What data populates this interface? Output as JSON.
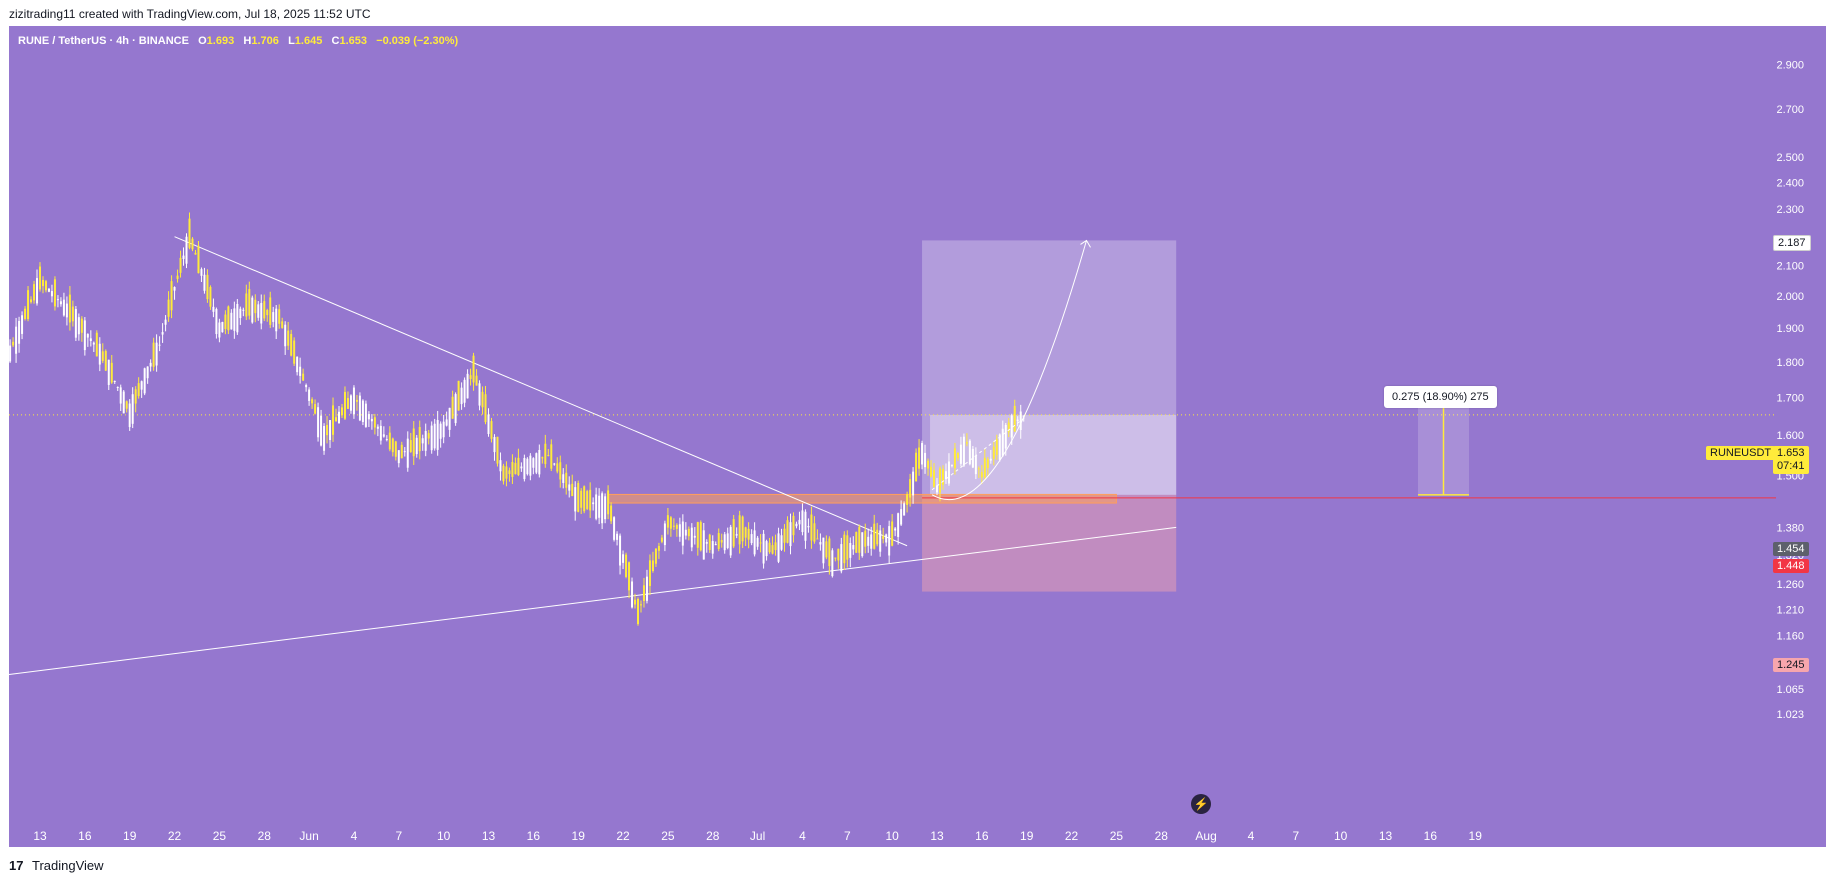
{
  "header": {
    "credit": "zizitrading11 created with TradingView.com, Jul 18, 2025 11:52 UTC"
  },
  "legend": {
    "symbol": "RUNE / TetherUS · 4h · BINANCE",
    "o_label": "O",
    "o": "1.693",
    "h_label": "H",
    "h": "1.706",
    "l_label": "L",
    "l": "1.645",
    "c_label": "C",
    "c": "1.653",
    "change": "−0.039 (−2.30%)"
  },
  "tags": {
    "target": "2.187",
    "entry": "1.454",
    "level": "1.448",
    "stop": "1.245",
    "symbol": "RUNEUSDT",
    "last_price": "1.653",
    "countdown": "07:41"
  },
  "measure": {
    "label": "0.275 (18.90%) 275"
  },
  "footer": {
    "logo": "17",
    "brand": "TradingView"
  },
  "icons": {
    "flash": "lightning-icon",
    "logo": "tradingview-logo-icon"
  },
  "colors": {
    "background": "#9577cf",
    "candle_up": "#ffffff",
    "candle_down": "#ffeb3b",
    "stop_zone": "rgba(247,166,173,0.45)",
    "target_zone": "rgba(255,255,255,0.35)",
    "accent_line": "#f23645"
  },
  "chart_data": {
    "type": "candlestick",
    "symbol": "RUNE / TetherUS",
    "timeframe": "4h",
    "exchange": "BINANCE",
    "price_axis": {
      "scale": "log",
      "ticks": [
        "2.900",
        "2.700",
        "2.500",
        "2.400",
        "2.300",
        "2.100",
        "2.000",
        "1.900",
        "1.800",
        "1.700",
        "1.600",
        "1.500",
        "1.380",
        "1.320",
        "1.260",
        "1.210",
        "1.160",
        "1.110",
        "1.065",
        "1.023"
      ],
      "range": [
        1.0,
        2.95
      ]
    },
    "time_axis": {
      "ticks": [
        "13",
        "16",
        "19",
        "22",
        "25",
        "28",
        "Jun",
        "4",
        "7",
        "10",
        "13",
        "16",
        "19",
        "22",
        "25",
        "28",
        "Jul",
        "4",
        "7",
        "10",
        "13",
        "16",
        "19",
        "22",
        "25",
        "28",
        "Aug",
        "4",
        "7",
        "10",
        "13",
        "16",
        "19"
      ]
    },
    "price_path": [
      {
        "t": "May 10",
        "p": 1.72
      },
      {
        "t": "May 13",
        "p": 2.05
      },
      {
        "t": "May 15",
        "p": 1.95
      },
      {
        "t": "May 17",
        "p": 1.83
      },
      {
        "t": "May 19",
        "p": 1.66
      },
      {
        "t": "May 21",
        "p": 1.85
      },
      {
        "t": "May 23",
        "p": 2.2
      },
      {
        "t": "May 25",
        "p": 1.9
      },
      {
        "t": "May 27",
        "p": 1.97
      },
      {
        "t": "May 29",
        "p": 1.93
      },
      {
        "t": "Jun 1",
        "p": 1.6
      },
      {
        "t": "Jun 3",
        "p": 1.7
      },
      {
        "t": "Jun 6",
        "p": 1.55
      },
      {
        "t": "Jun 9",
        "p": 1.62
      },
      {
        "t": "Jun 11",
        "p": 1.77
      },
      {
        "t": "Jun 13",
        "p": 1.5
      },
      {
        "t": "Jun 16",
        "p": 1.55
      },
      {
        "t": "Jun 18",
        "p": 1.44
      },
      {
        "t": "Jun 20",
        "p": 1.43
      },
      {
        "t": "Jun 22",
        "p": 1.2
      },
      {
        "t": "Jun 24",
        "p": 1.39
      },
      {
        "t": "Jun 27",
        "p": 1.34
      },
      {
        "t": "Jun 29",
        "p": 1.37
      },
      {
        "t": "Jul 1",
        "p": 1.33
      },
      {
        "t": "Jul 3",
        "p": 1.4
      },
      {
        "t": "Jul 5",
        "p": 1.31
      },
      {
        "t": "Jul 7",
        "p": 1.35
      },
      {
        "t": "Jul 9",
        "p": 1.36
      },
      {
        "t": "Jul 10",
        "p": 1.44
      },
      {
        "t": "Jul 11",
        "p": 1.56
      },
      {
        "t": "Jul 12",
        "p": 1.47
      },
      {
        "t": "Jul 14",
        "p": 1.58
      },
      {
        "t": "Jul 15",
        "p": 1.5
      },
      {
        "t": "Jul 17",
        "p": 1.63
      },
      {
        "t": "Jul 18",
        "p": 1.653
      }
    ],
    "last_price": 1.653,
    "annotations": {
      "descending_trendline": [
        {
          "t": "May 22",
          "p": 2.2
        },
        {
          "t": "Jul 10",
          "p": 1.34
        }
      ],
      "ascending_trendline": [
        {
          "t": "May 10",
          "p": 1.09
        },
        {
          "t": "Jul 28",
          "p": 1.38
        }
      ],
      "horizontal_zone": {
        "from": "Jun 20",
        "to": "Jul 24",
        "low": 1.435,
        "high": 1.455
      },
      "long_position": {
        "from": "Jul 11",
        "to": "Jul 28",
        "entry": 1.454,
        "target": 2.187,
        "stop": 1.245,
        "current": 1.653
      },
      "projected_path_to": {
        "t": "Jul 22",
        "p": 2.187
      },
      "measure": {
        "from": 1.454,
        "to": 1.729,
        "change": 0.275,
        "percent": 18.9
      }
    }
  }
}
